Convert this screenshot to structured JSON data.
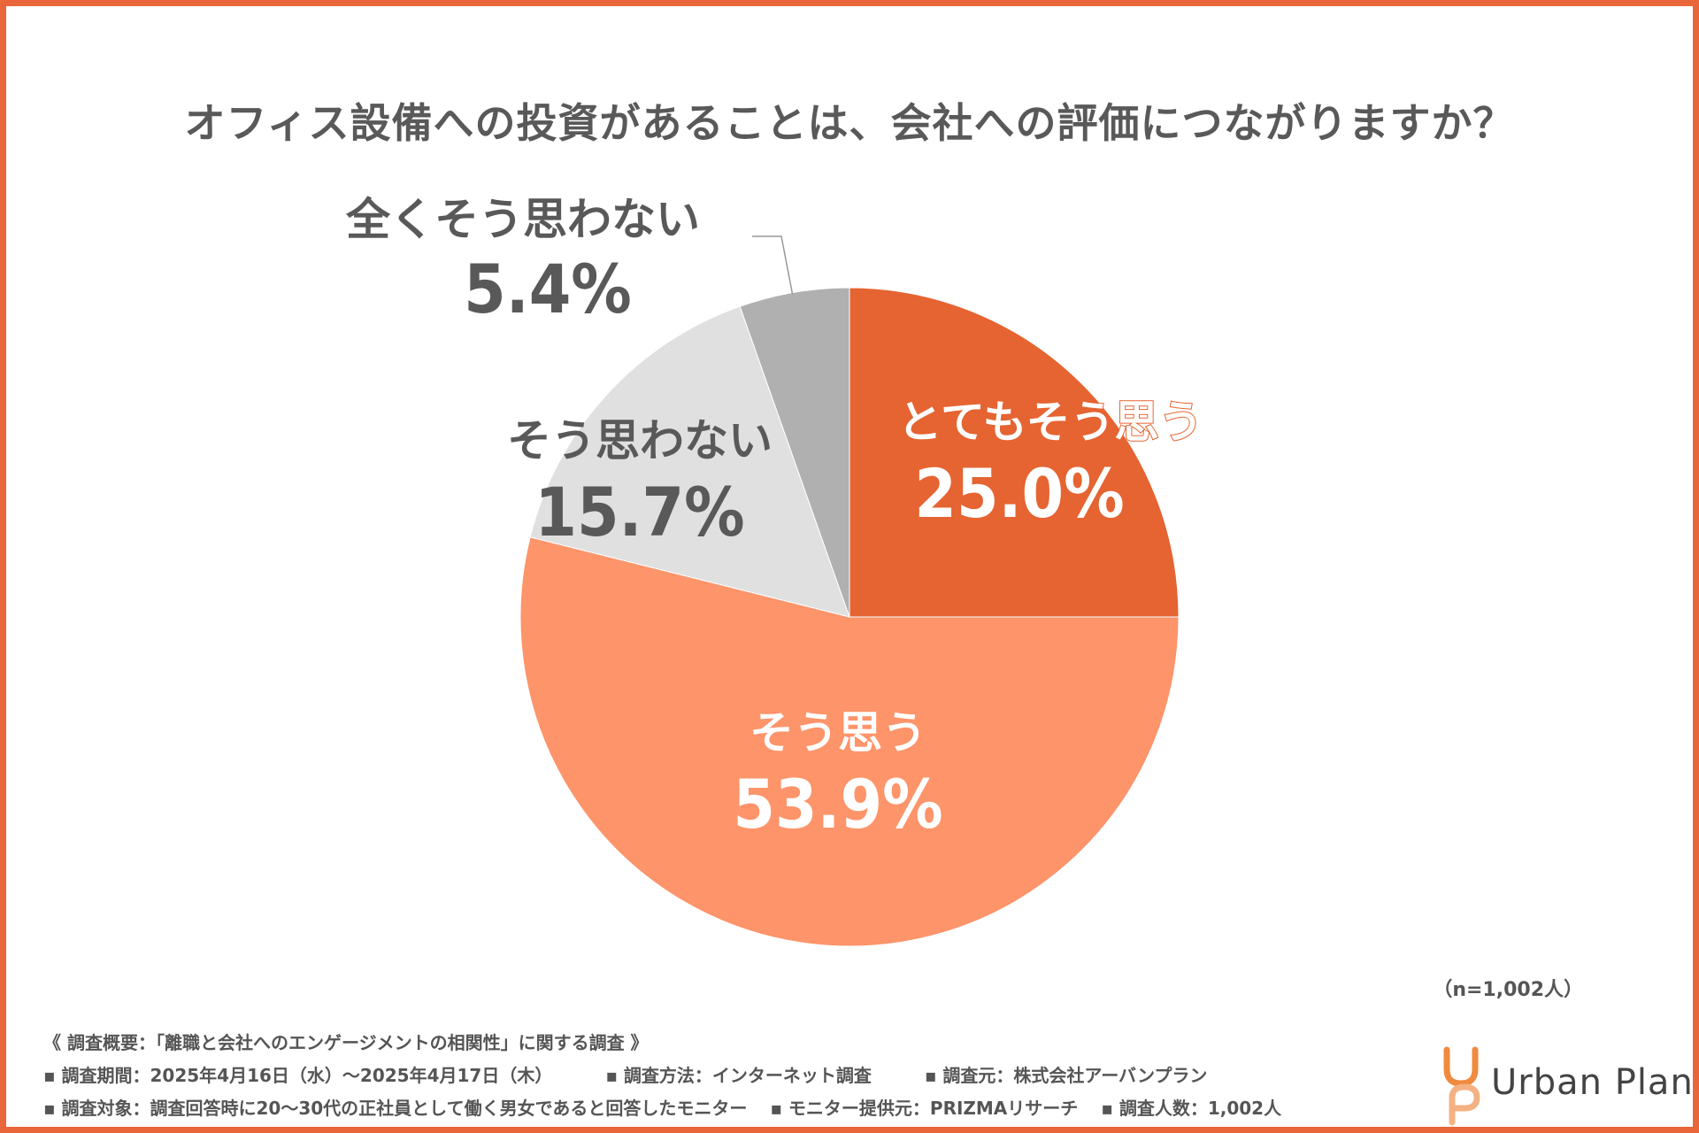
{
  "title": "オフィス設備への投資があることは、会社への評価につながりますか？",
  "chart_data": {
    "type": "pie",
    "title": "オフィス設備への投資があることは、会社への評価につながりますか？",
    "slices": [
      {
        "label": "とてもそう思う",
        "value": 25.0,
        "display": "25.0%",
        "color": "#e56431"
      },
      {
        "label": "そう思う",
        "value": 53.9,
        "display": "53.9%",
        "color": "#fd946a"
      },
      {
        "label": "そう思わない",
        "value": 15.7,
        "display": "15.7%",
        "color": "#e0e0e0"
      },
      {
        "label": "全くそう思わない",
        "value": 5.4,
        "display": "5.4%",
        "color": "#b0b0b0"
      }
    ],
    "start_angle": "12 o'clock, clockwise",
    "sample_note": "（n=1,002人）"
  },
  "footnotes": {
    "heading": "《 調査概要：「離職と会社へのエンゲージメントの相関性」に関する調査 》",
    "period": "▪ 調査期間：2025年4月16日（水）～2025年4月17日（木）",
    "method": "▪ 調査方法：インターネット調査",
    "source": "▪ 調査元：株式会社アーバンプラン",
    "target": "▪ 調査対象：調査回答時に20～30代の正社員として働く男女であると回答したモニター",
    "provider": "▪ モニター提供元：PRIZMAリサーチ",
    "count": "▪ 調査人数：1,002人"
  },
  "brand": {
    "name": "Urban Plan",
    "accent": "#f08a3e"
  },
  "colors": {
    "frame": "#e8663a",
    "text": "#555555"
  }
}
